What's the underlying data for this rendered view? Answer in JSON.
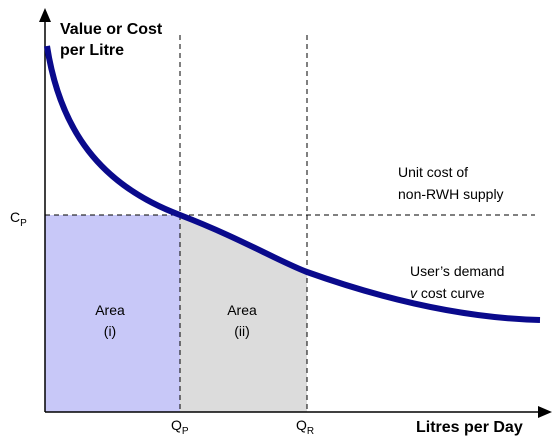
{
  "axes": {
    "y_label": [
      "Value or Cost",
      "per Litre"
    ],
    "x_label": "Litres per Day"
  },
  "markers": {
    "cp": {
      "text": "C",
      "sub": "P"
    },
    "qp": {
      "text": "Q",
      "sub": "P"
    },
    "qr": {
      "text": "Q",
      "sub": "R"
    }
  },
  "annotations": {
    "unit_cost": [
      "Unit cost of",
      "non-RWH supply"
    ],
    "demand": {
      "line1": "User’s demand",
      "italic": "v",
      "rest": "cost curve"
    }
  },
  "areas": [
    {
      "title": "Area",
      "label": "(i)"
    },
    {
      "title": "Area",
      "label": "(ii)"
    }
  ]
}
